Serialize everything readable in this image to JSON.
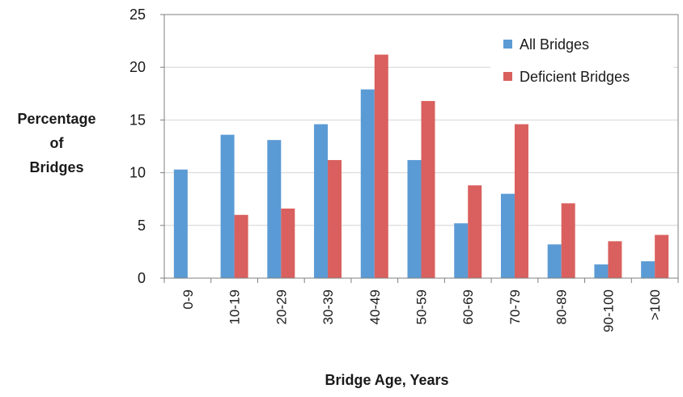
{
  "chart_data": {
    "type": "bar",
    "title": "",
    "xlabel": "Bridge Age, Years",
    "ylabel_lines": [
      "Percentage",
      "of",
      "Bridges"
    ],
    "ylim": [
      0,
      25
    ],
    "yticks": [
      0,
      5,
      10,
      15,
      20,
      25
    ],
    "grid": true,
    "legend_position": "top-right",
    "categories": [
      "0-9",
      "10-19",
      "20-29",
      "30-39",
      "40-49",
      "50-59",
      "60-69",
      "70-79",
      "80-89",
      "90-100",
      ">100"
    ],
    "series": [
      {
        "name": "All Bridges",
        "color": "#5b9bd5",
        "values": [
          10.3,
          13.6,
          13.1,
          14.6,
          17.9,
          11.2,
          5.2,
          8.0,
          3.2,
          1.3,
          1.6
        ]
      },
      {
        "name": "Deficient Bridges",
        "color": "#d9605e",
        "values": [
          0,
          6.0,
          6.6,
          11.2,
          21.2,
          16.8,
          8.8,
          14.6,
          7.1,
          3.5,
          4.1
        ]
      }
    ]
  }
}
